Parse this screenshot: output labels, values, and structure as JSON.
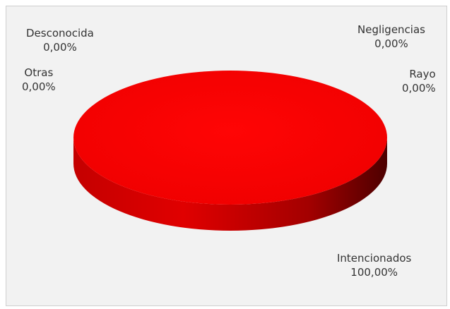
{
  "chart_data": {
    "type": "pie",
    "style": "3d",
    "title": "",
    "slices": [
      {
        "name": "Intencionados",
        "value": 100.0,
        "label": "100,00%"
      },
      {
        "name": "Rayo",
        "value": 0.0,
        "label": "0,00%"
      },
      {
        "name": "Negligencias",
        "value": 0.0,
        "label": "0,00%"
      },
      {
        "name": "Desconocida",
        "value": 0.0,
        "label": "0,00%"
      },
      {
        "name": "Otras",
        "value": 0.0,
        "label": "0,00%"
      }
    ],
    "legend": "none",
    "grid": false
  },
  "colors": {
    "slice_top": "#ff0000",
    "slice_side_light": "#e00000",
    "slice_side_dark": "#5a0000",
    "background": "#f2f2f2"
  }
}
